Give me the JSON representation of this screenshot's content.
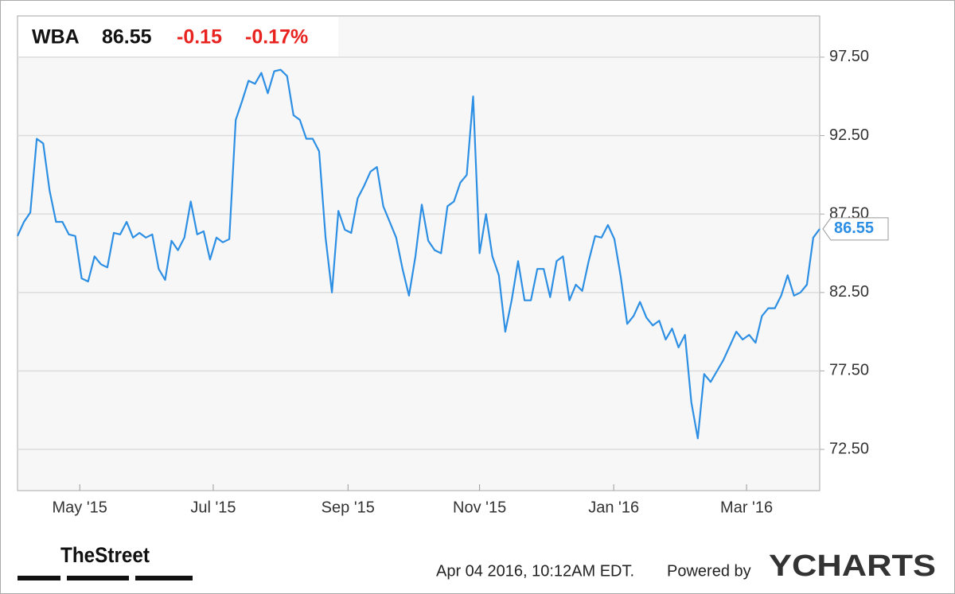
{
  "chart_data": {
    "type": "line",
    "header": {
      "ticker": "WBA",
      "price": "86.55",
      "change": "-0.15",
      "change_percent": "-0.17%"
    },
    "series": [
      {
        "name": "WBA",
        "color": "#2d8fe3",
        "values": [
          86.1,
          87.0,
          87.6,
          92.3,
          92.0,
          89.0,
          87.0,
          87.0,
          86.2,
          86.1,
          83.4,
          83.2,
          84.8,
          84.3,
          84.1,
          86.3,
          86.2,
          87.0,
          86.0,
          86.3,
          86.0,
          86.2,
          84.0,
          83.3,
          85.8,
          85.2,
          86.0,
          88.3,
          86.2,
          86.4,
          84.6,
          86.0,
          85.7,
          85.9,
          93.5,
          94.7,
          96.0,
          95.8,
          96.5,
          95.2,
          96.6,
          96.7,
          96.3,
          93.8,
          93.5,
          92.3,
          92.3,
          91.5,
          86.0,
          82.5,
          87.7,
          86.5,
          86.3,
          88.5,
          89.3,
          90.2,
          90.5,
          88.0,
          87.0,
          86.0,
          84.0,
          82.3,
          84.8,
          88.1,
          85.8,
          85.2,
          85.0,
          88.0,
          88.3,
          89.5,
          90.0,
          95.0,
          85.0,
          87.5,
          84.8,
          83.6,
          80.0,
          82.0,
          84.5,
          82.0,
          82.0,
          84.0,
          84.0,
          82.2,
          84.5,
          84.8,
          82.0,
          83.0,
          82.6,
          84.5,
          86.1,
          86.0,
          86.8,
          85.9,
          83.5,
          80.5,
          81.0,
          81.9,
          80.9,
          80.4,
          80.7,
          79.5,
          80.2,
          79.0,
          79.8,
          75.5,
          73.2,
          77.3,
          76.8,
          77.5,
          78.2,
          79.1,
          80.0,
          79.5,
          79.8,
          79.3,
          81.0,
          81.5,
          81.5,
          82.3,
          83.6,
          82.3,
          82.5,
          83.0,
          86.0,
          86.55
        ]
      }
    ],
    "xlim": [
      0,
      125
    ],
    "xticks": [
      {
        "value": 9.7,
        "label": "May '15"
      },
      {
        "value": 30.5,
        "label": "Jul '15"
      },
      {
        "value": 51.5,
        "label": "Sep '15"
      },
      {
        "value": 72.0,
        "label": "Nov '15"
      },
      {
        "value": 92.9,
        "label": "Jan '16"
      },
      {
        "value": 113.6,
        "label": "Mar '16"
      }
    ],
    "ylim": [
      69.87,
      100.13
    ],
    "yticks": [
      {
        "value": 72.5,
        "label": "72.50"
      },
      {
        "value": 77.5,
        "label": "77.50"
      },
      {
        "value": 82.5,
        "label": "82.50"
      },
      {
        "value": 87.5,
        "label": "87.50"
      },
      {
        "value": 92.5,
        "label": "92.50"
      },
      {
        "value": 97.5,
        "label": "97.50"
      }
    ],
    "grid": true,
    "footer": {
      "brand": "TheStreet",
      "timestamp": "Apr 04 2016, 10:12AM EDT.",
      "powered": "Powered by",
      "provider": "YCHARTS"
    }
  }
}
